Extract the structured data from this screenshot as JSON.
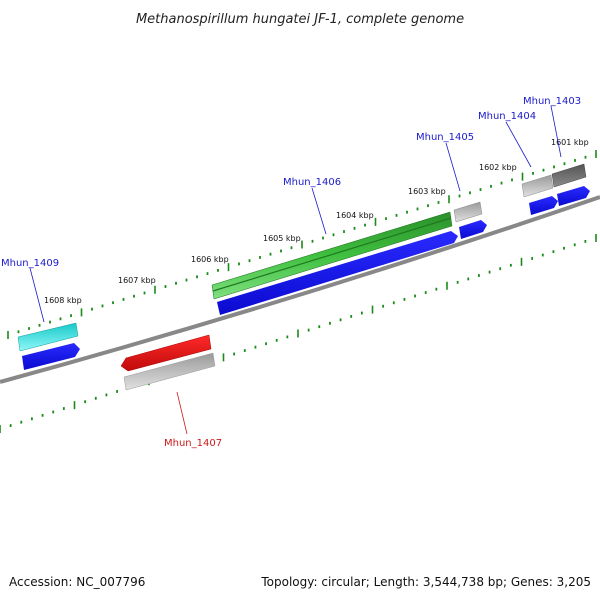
{
  "title": "Methanospirillum hungatei JF-1, complete genome",
  "kbp_labels": [
    "1608 kbp",
    "1607 kbp",
    "1606 kbp",
    "1605 kbp",
    "1604 kbp",
    "1603 kbp",
    "1602 kbp",
    "1601 kbp"
  ],
  "gene_labels": {
    "mhun_1409": "Mhun_1409",
    "mhun_1406": "Mhun_1406",
    "mhun_1405": "Mhun_1405",
    "mhun_1404": "Mhun_1404",
    "mhun_1403": "Mhun_1403",
    "mhun_1407": "Mhun_1407"
  },
  "footer": {
    "accession": "Accession: NC_007796",
    "topology": "Topology: circular; Length: 3,544,738 bp; Genes: 3,205"
  },
  "colors": {
    "backbone": "#808080",
    "tick": "#1a8a1a",
    "cds": "#1414e6",
    "gene_green": "#2e9e2e",
    "gene_cyan": "#19e6e6",
    "gene_red": "#e61414",
    "gene_grey": "#b4b4b4",
    "gene_darkgrey": "#6e6e6e"
  }
}
